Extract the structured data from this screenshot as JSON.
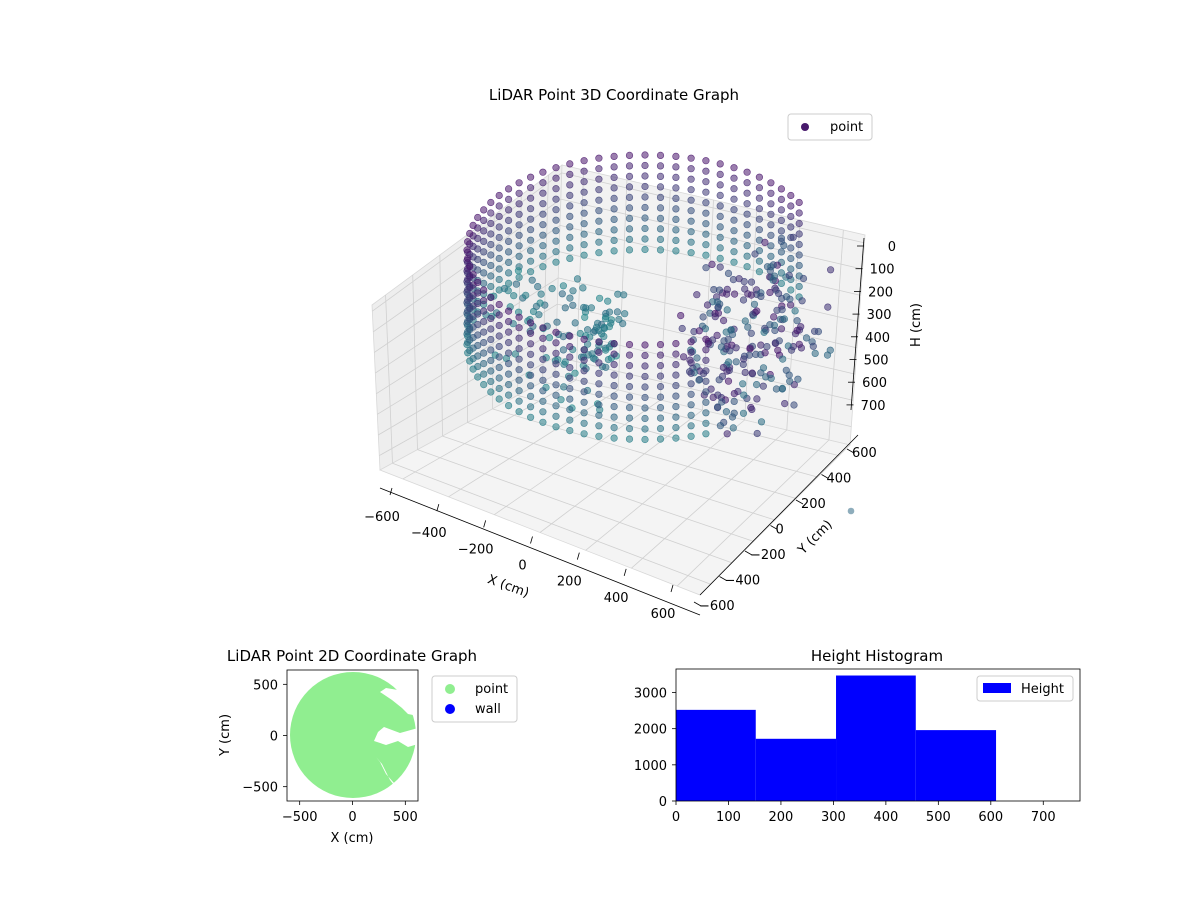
{
  "chart_data": [
    {
      "type": "scatter",
      "projection": "3d",
      "title": "LiDAR Point 3D Coordinate Graph",
      "xlabel": "X (cm)",
      "ylabel": "Y (cm)",
      "zlabel": "H (cm)",
      "xlim": [
        -620,
        620
      ],
      "ylim": [
        -620,
        620
      ],
      "zlim": [
        760,
        0
      ],
      "z_axis_inverted": true,
      "x_ticks": [
        "−600",
        "−400",
        "−200",
        "0",
        "200",
        "400",
        "600"
      ],
      "y_ticks": [
        "−600",
        "−400",
        "−200",
        "0",
        "200",
        "400",
        "600"
      ],
      "z_ticks": [
        "0",
        "100",
        "200",
        "300",
        "400",
        "500",
        "600",
        "700"
      ],
      "grid": true,
      "legend": [
        {
          "label": "point",
          "color": "#481a6c"
        }
      ],
      "legend_position": "top-right",
      "colormap": "viridis",
      "description_of_shape": "ring of points around circular wall radius ~600 cm, heights 0-600 cm, with open sector and scattered points on right side"
    },
    {
      "type": "scatter",
      "title": "LiDAR Point 2D Coordinate Graph",
      "xlabel": "X (cm)",
      "ylabel": "Y (cm)",
      "xlim": [
        -620,
        620
      ],
      "ylim": [
        -640,
        640
      ],
      "x_ticks": [
        "−500",
        "0",
        "500"
      ],
      "y_ticks": [
        "−500",
        "0",
        "500"
      ],
      "legend": [
        {
          "label": "point",
          "color": "#90ee90"
        },
        {
          "label": "wall",
          "color": "#0000ff"
        }
      ],
      "legend_position": "outside-right",
      "region": "filled disk radius ~620 cm with gaps on the right side"
    },
    {
      "type": "bar",
      "subtype": "histogram",
      "title": "Height Histogram",
      "xlim": [
        0,
        770
      ],
      "ylim": [
        0,
        3650
      ],
      "x_ticks": [
        "0",
        "100",
        "200",
        "300",
        "400",
        "500",
        "600",
        "700"
      ],
      "y_ticks": [
        "0",
        "1000",
        "2000",
        "3000"
      ],
      "bins": [
        {
          "from": 0,
          "to": 152,
          "count": 2520
        },
        {
          "from": 152,
          "to": 305,
          "count": 1720
        },
        {
          "from": 305,
          "to": 457,
          "count": 3470
        },
        {
          "from": 457,
          "to": 610,
          "count": 1960
        }
      ],
      "legend": [
        {
          "label": "Height",
          "color": "#0000ff"
        }
      ],
      "legend_position": "top-right",
      "bar_color": "#0000ff"
    }
  ]
}
